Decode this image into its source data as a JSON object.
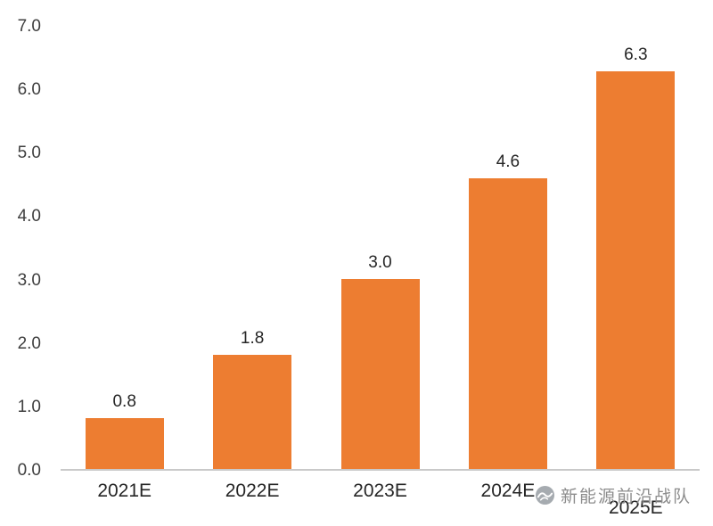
{
  "chart_data": {
    "type": "bar",
    "title": "",
    "xlabel": "",
    "ylabel": "",
    "categories": [
      "2021E",
      "2022E",
      "2023E",
      "2024E",
      "2025E"
    ],
    "values": [
      0.8,
      1.8,
      3.0,
      4.6,
      6.3
    ],
    "value_labels": [
      "0.8",
      "1.8",
      "3.0",
      "4.6",
      "6.3"
    ],
    "ylim": [
      0,
      7
    ],
    "yticks": [
      "7.0",
      "6.0",
      "5.0",
      "4.0",
      "3.0",
      "2.0",
      "1.0",
      "0.0"
    ],
    "grid": false,
    "legend_position": "none",
    "bar_color": "#ED7D31",
    "axis_line_color": "#C9C9C9",
    "label_color": "#262626",
    "tick_color": "#3F3F3F"
  },
  "watermark": {
    "text": "新能源前沿战队",
    "color": "#8C8C8C"
  }
}
